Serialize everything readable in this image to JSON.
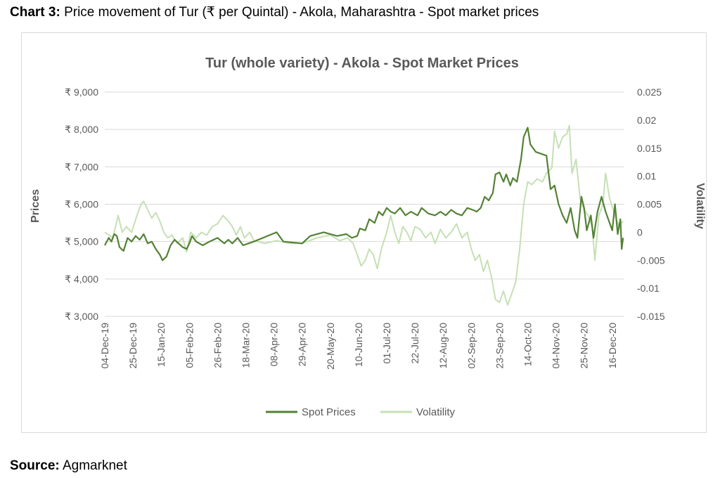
{
  "caption": {
    "label": "Chart 3:",
    "text": "Price movement of Tur (₹ per Quintal) - Akola, Maharashtra - Spot market prices"
  },
  "source": {
    "label": "Source:",
    "text": "Agmarknet"
  },
  "colors": {
    "spot": "#548235",
    "volatility": "#c5e0b4",
    "grid": "#d9d9d9",
    "text": "#595959"
  },
  "chart_data": {
    "type": "line",
    "title": "Tur (whole variety) - Akola - Spot Market Prices",
    "ylabel": "Prices",
    "y2label": "Volatility",
    "ylim": [
      3000,
      9000
    ],
    "y2lim": [
      -0.015,
      0.025
    ],
    "yticks": [
      9000,
      8000,
      7000,
      6000,
      5000,
      4000,
      3000
    ],
    "ytick_labels": [
      "₹ 9,000",
      "₹ 8,000",
      "₹ 7,000",
      "₹ 6,000",
      "₹ 5,000",
      "₹ 4,000",
      "₹ 3,000"
    ],
    "y2ticks": [
      0.025,
      0.02,
      0.015,
      0.01,
      0.005,
      0,
      -0.005,
      -0.01,
      -0.015
    ],
    "y2tick_labels": [
      "0.025",
      "0.02",
      "0.015",
      "0.01",
      "0.005",
      "0",
      "-0.005",
      "-0.01",
      "-0.015"
    ],
    "xlim": [
      "2019-12-04",
      "2020-12-25"
    ],
    "xticks": [
      "2019-12-04",
      "2019-12-25",
      "2020-01-15",
      "2020-02-05",
      "2020-02-26",
      "2020-03-18",
      "2020-04-08",
      "2020-04-29",
      "2020-05-20",
      "2020-06-10",
      "2020-07-01",
      "2020-07-22",
      "2020-08-12",
      "2020-09-02",
      "2020-09-23",
      "2020-10-14",
      "2020-11-04",
      "2020-11-25",
      "2020-12-16"
    ],
    "xtick_labels": [
      "04-Dec-19",
      "25-Dec-19",
      "15-Jan-20",
      "05-Feb-20",
      "26-Feb-20",
      "18-Mar-20",
      "08-Apr-20",
      "29-Apr-20",
      "20-May-20",
      "10-Jun-20",
      "01-Jul-20",
      "22-Jul-20",
      "12-Aug-20",
      "02-Sep-20",
      "23-Sep-20",
      "14-Oct-20",
      "04-Nov-20",
      "25-Nov-20",
      "16-Dec-20"
    ],
    "legend_position": "bottom",
    "grid": true,
    "series": [
      {
        "name": "Spot Prices",
        "axis": "left",
        "points": [
          [
            "2019-12-04",
            4900
          ],
          [
            "2019-12-07",
            5100
          ],
          [
            "2019-12-09",
            5000
          ],
          [
            "2019-12-11",
            5200
          ],
          [
            "2019-12-13",
            5150
          ],
          [
            "2019-12-15",
            4850
          ],
          [
            "2019-12-18",
            4750
          ],
          [
            "2019-12-21",
            5100
          ],
          [
            "2019-12-24",
            5000
          ],
          [
            "2019-12-27",
            5150
          ],
          [
            "2019-12-30",
            5050
          ],
          [
            "2020-01-02",
            5200
          ],
          [
            "2020-01-05",
            4950
          ],
          [
            "2020-01-08",
            5000
          ],
          [
            "2020-01-11",
            4800
          ],
          [
            "2020-01-14",
            4650
          ],
          [
            "2020-01-16",
            4500
          ],
          [
            "2020-01-19",
            4600
          ],
          [
            "2020-01-22",
            4900
          ],
          [
            "2020-01-25",
            5050
          ],
          [
            "2020-01-28",
            4950
          ],
          [
            "2020-01-31",
            4850
          ],
          [
            "2020-02-03",
            4800
          ],
          [
            "2020-02-05",
            4950
          ],
          [
            "2020-02-07",
            5150
          ],
          [
            "2020-02-10",
            5000
          ],
          [
            "2020-02-15",
            4900
          ],
          [
            "2020-02-20",
            5000
          ],
          [
            "2020-02-26",
            5100
          ],
          [
            "2020-03-02",
            4950
          ],
          [
            "2020-03-05",
            5050
          ],
          [
            "2020-03-08",
            4950
          ],
          [
            "2020-03-12",
            5100
          ],
          [
            "2020-03-16",
            4900
          ],
          [
            "2020-03-20",
            4950
          ],
          [
            "2020-03-24",
            5000
          ],
          [
            "2020-04-10",
            5250
          ],
          [
            "2020-04-15",
            5000
          ],
          [
            "2020-04-29",
            4950
          ],
          [
            "2020-05-05",
            5150
          ],
          [
            "2020-05-15",
            5250
          ],
          [
            "2020-05-25",
            5150
          ],
          [
            "2020-06-01",
            5200
          ],
          [
            "2020-06-05",
            5100
          ],
          [
            "2020-06-09",
            5150
          ],
          [
            "2020-06-11",
            5350
          ],
          [
            "2020-06-15",
            5300
          ],
          [
            "2020-06-18",
            5600
          ],
          [
            "2020-06-22",
            5500
          ],
          [
            "2020-06-25",
            5800
          ],
          [
            "2020-06-28",
            5700
          ],
          [
            "2020-07-01",
            5900
          ],
          [
            "2020-07-04",
            5800
          ],
          [
            "2020-07-07",
            5750
          ],
          [
            "2020-07-11",
            5900
          ],
          [
            "2020-07-15",
            5700
          ],
          [
            "2020-07-19",
            5800
          ],
          [
            "2020-07-24",
            5700
          ],
          [
            "2020-07-27",
            5900
          ],
          [
            "2020-08-01",
            5750
          ],
          [
            "2020-08-06",
            5700
          ],
          [
            "2020-08-10",
            5800
          ],
          [
            "2020-08-14",
            5700
          ],
          [
            "2020-08-18",
            5850
          ],
          [
            "2020-08-22",
            5750
          ],
          [
            "2020-08-26",
            5700
          ],
          [
            "2020-08-30",
            5900
          ],
          [
            "2020-09-03",
            5850
          ],
          [
            "2020-09-06",
            5800
          ],
          [
            "2020-09-09",
            5900
          ],
          [
            "2020-09-12",
            6200
          ],
          [
            "2020-09-15",
            6100
          ],
          [
            "2020-09-18",
            6300
          ],
          [
            "2020-09-20",
            6800
          ],
          [
            "2020-09-23",
            6850
          ],
          [
            "2020-09-26",
            6600
          ],
          [
            "2020-09-28",
            6800
          ],
          [
            "2020-10-01",
            6500
          ],
          [
            "2020-10-03",
            6700
          ],
          [
            "2020-10-06",
            6600
          ],
          [
            "2020-10-09",
            7200
          ],
          [
            "2020-10-11",
            7800
          ],
          [
            "2020-10-14",
            8050
          ],
          [
            "2020-10-16",
            7600
          ],
          [
            "2020-10-20",
            7400
          ],
          [
            "2020-10-28",
            7300
          ],
          [
            "2020-10-31",
            6400
          ],
          [
            "2020-11-03",
            6500
          ],
          [
            "2020-11-06",
            6000
          ],
          [
            "2020-11-09",
            5700
          ],
          [
            "2020-11-12",
            5500
          ],
          [
            "2020-11-15",
            5900
          ],
          [
            "2020-11-18",
            5300
          ],
          [
            "2020-11-20",
            5100
          ],
          [
            "2020-11-23",
            6200
          ],
          [
            "2020-11-25",
            5900
          ],
          [
            "2020-11-27",
            5300
          ],
          [
            "2020-11-30",
            5700
          ],
          [
            "2020-12-02",
            5100
          ],
          [
            "2020-12-05",
            5800
          ],
          [
            "2020-12-08",
            6200
          ],
          [
            "2020-12-11",
            5800
          ],
          [
            "2020-12-14",
            5500
          ],
          [
            "2020-12-16",
            5300
          ],
          [
            "2020-12-18",
            6000
          ],
          [
            "2020-12-20",
            5200
          ],
          [
            "2020-12-22",
            5600
          ],
          [
            "2020-12-23",
            4800
          ],
          [
            "2020-12-24",
            5100
          ]
        ]
      },
      {
        "name": "Volatility",
        "axis": "right",
        "points": [
          [
            "2019-12-04",
            0.0
          ],
          [
            "2019-12-10",
            -0.001
          ],
          [
            "2019-12-14",
            0.003
          ],
          [
            "2019-12-17",
            0.0
          ],
          [
            "2019-12-20",
            0.001
          ],
          [
            "2019-12-24",
            0.0
          ],
          [
            "2019-12-28",
            0.003
          ],
          [
            "2019-12-31",
            0.005
          ],
          [
            "2020-01-02",
            0.0055
          ],
          [
            "2020-01-05",
            0.004
          ],
          [
            "2020-01-08",
            0.0025
          ],
          [
            "2020-01-11",
            0.0035
          ],
          [
            "2020-01-14",
            0.002
          ],
          [
            "2020-01-17",
            0.0
          ],
          [
            "2020-01-20",
            -0.001
          ],
          [
            "2020-01-23",
            -0.0005
          ],
          [
            "2020-01-27",
            -0.002
          ],
          [
            "2020-01-31",
            -0.001
          ],
          [
            "2020-02-03",
            -0.0035
          ],
          [
            "2020-02-06",
            0.0
          ],
          [
            "2020-02-10",
            -0.001
          ],
          [
            "2020-02-14",
            0.0
          ],
          [
            "2020-02-18",
            -0.0005
          ],
          [
            "2020-02-22",
            0.001
          ],
          [
            "2020-02-26",
            0.0015
          ],
          [
            "2020-03-01",
            0.003
          ],
          [
            "2020-03-05",
            0.002
          ],
          [
            "2020-03-08",
            0.001
          ],
          [
            "2020-03-11",
            -0.0005
          ],
          [
            "2020-03-14",
            0.001
          ],
          [
            "2020-03-17",
            -0.001
          ],
          [
            "2020-03-21",
            0.0
          ],
          [
            "2020-03-24",
            -0.0015
          ],
          [
            "2020-04-01",
            -0.002
          ],
          [
            "2020-04-10",
            -0.0015
          ],
          [
            "2020-04-20",
            -0.002
          ],
          [
            "2020-04-29",
            -0.002
          ],
          [
            "2020-05-10",
            -0.001
          ],
          [
            "2020-05-20",
            -0.0005
          ],
          [
            "2020-05-27",
            -0.0015
          ],
          [
            "2020-06-02",
            -0.001
          ],
          [
            "2020-06-06",
            -0.002
          ],
          [
            "2020-06-09",
            -0.004
          ],
          [
            "2020-06-12",
            -0.006
          ],
          [
            "2020-06-15",
            -0.005
          ],
          [
            "2020-06-18",
            -0.003
          ],
          [
            "2020-06-21",
            -0.004
          ],
          [
            "2020-06-24",
            -0.0065
          ],
          [
            "2020-06-27",
            -0.003
          ],
          [
            "2020-07-01",
            0.0
          ],
          [
            "2020-07-04",
            0.003
          ],
          [
            "2020-07-07",
            0.0
          ],
          [
            "2020-07-10",
            -0.002
          ],
          [
            "2020-07-13",
            0.001
          ],
          [
            "2020-07-16",
            0.0
          ],
          [
            "2020-07-19",
            -0.0015
          ],
          [
            "2020-07-22",
            0.001
          ],
          [
            "2020-07-26",
            0.0005
          ],
          [
            "2020-07-30",
            -0.001
          ],
          [
            "2020-08-03",
            0.0
          ],
          [
            "2020-08-06",
            -0.002
          ],
          [
            "2020-08-10",
            0.0005
          ],
          [
            "2020-08-14",
            -0.001
          ],
          [
            "2020-08-18",
            0.0
          ],
          [
            "2020-08-22",
            0.0015
          ],
          [
            "2020-08-26",
            -0.001
          ],
          [
            "2020-08-30",
            0.0
          ],
          [
            "2020-09-02",
            -0.003
          ],
          [
            "2020-09-05",
            -0.005
          ],
          [
            "2020-09-08",
            -0.004
          ],
          [
            "2020-09-11",
            -0.007
          ],
          [
            "2020-09-14",
            -0.005
          ],
          [
            "2020-09-17",
            -0.008
          ],
          [
            "2020-09-20",
            -0.012
          ],
          [
            "2020-09-23",
            -0.0125
          ],
          [
            "2020-09-26",
            -0.0105
          ],
          [
            "2020-09-29",
            -0.013
          ],
          [
            "2020-10-02",
            -0.011
          ],
          [
            "2020-10-05",
            -0.009
          ],
          [
            "2020-10-08",
            -0.003
          ],
          [
            "2020-10-11",
            0.005
          ],
          [
            "2020-10-14",
            0.009
          ],
          [
            "2020-10-17",
            0.0085
          ],
          [
            "2020-10-21",
            0.0095
          ],
          [
            "2020-10-25",
            0.009
          ],
          [
            "2020-10-28",
            0.0105
          ],
          [
            "2020-11-01",
            0.0115
          ],
          [
            "2020-11-03",
            0.018
          ],
          [
            "2020-11-06",
            0.015
          ],
          [
            "2020-11-09",
            0.017
          ],
          [
            "2020-11-12",
            0.0175
          ],
          [
            "2020-11-14",
            0.019
          ],
          [
            "2020-11-16",
            0.0105
          ],
          [
            "2020-11-19",
            0.013
          ],
          [
            "2020-11-22",
            0.006
          ],
          [
            "2020-11-25",
            0.004
          ],
          [
            "2020-11-28",
            0.003
          ],
          [
            "2020-12-01",
            0.001
          ],
          [
            "2020-12-03",
            -0.005
          ],
          [
            "2020-12-06",
            0.003
          ],
          [
            "2020-12-09",
            0.005
          ],
          [
            "2020-12-11",
            0.0105
          ],
          [
            "2020-12-14",
            0.006
          ],
          [
            "2020-12-18",
            0.003
          ],
          [
            "2020-12-21",
            0.001
          ],
          [
            "2020-12-24",
            0.002
          ]
        ]
      }
    ]
  }
}
